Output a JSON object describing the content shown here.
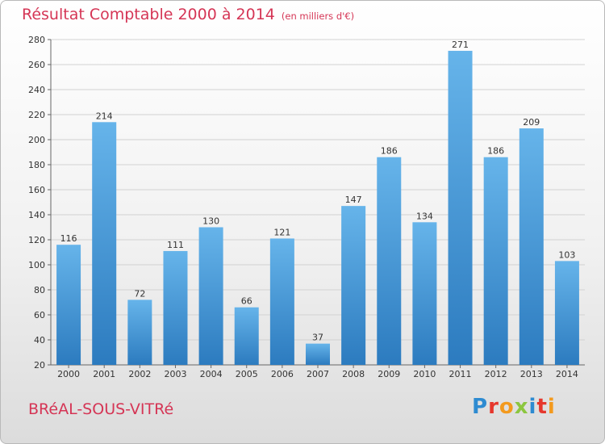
{
  "header": {
    "title": "Résultat Comptable 2000 à 2014",
    "subtitle": "(en milliers d'€)"
  },
  "footer": {
    "town": "BRéAL-SOUS-VITRé",
    "logo": "Proxiti"
  },
  "colors": {
    "title": "#d53555",
    "bar_light": "#63b1e8",
    "bar_dark": "#2f7fc2",
    "grid": "#d2d2d2",
    "axis": "#666666"
  },
  "chart_data": {
    "type": "bar",
    "title": "Résultat Comptable 2000 à 2014",
    "subtitle": "(en milliers d'€)",
    "categories": [
      "2000",
      "2001",
      "2002",
      "2003",
      "2004",
      "2005",
      "2006",
      "2007",
      "2008",
      "2009",
      "2010",
      "2011",
      "2012",
      "2013",
      "2014"
    ],
    "values": [
      116,
      214,
      72,
      111,
      130,
      66,
      121,
      37,
      147,
      186,
      134,
      271,
      186,
      209,
      103
    ],
    "ylim": [
      20,
      280
    ],
    "yticks": [
      20,
      40,
      60,
      80,
      100,
      120,
      140,
      160,
      180,
      200,
      220,
      240,
      260,
      280
    ],
    "grid": true,
    "xlabel": "",
    "ylabel": ""
  }
}
